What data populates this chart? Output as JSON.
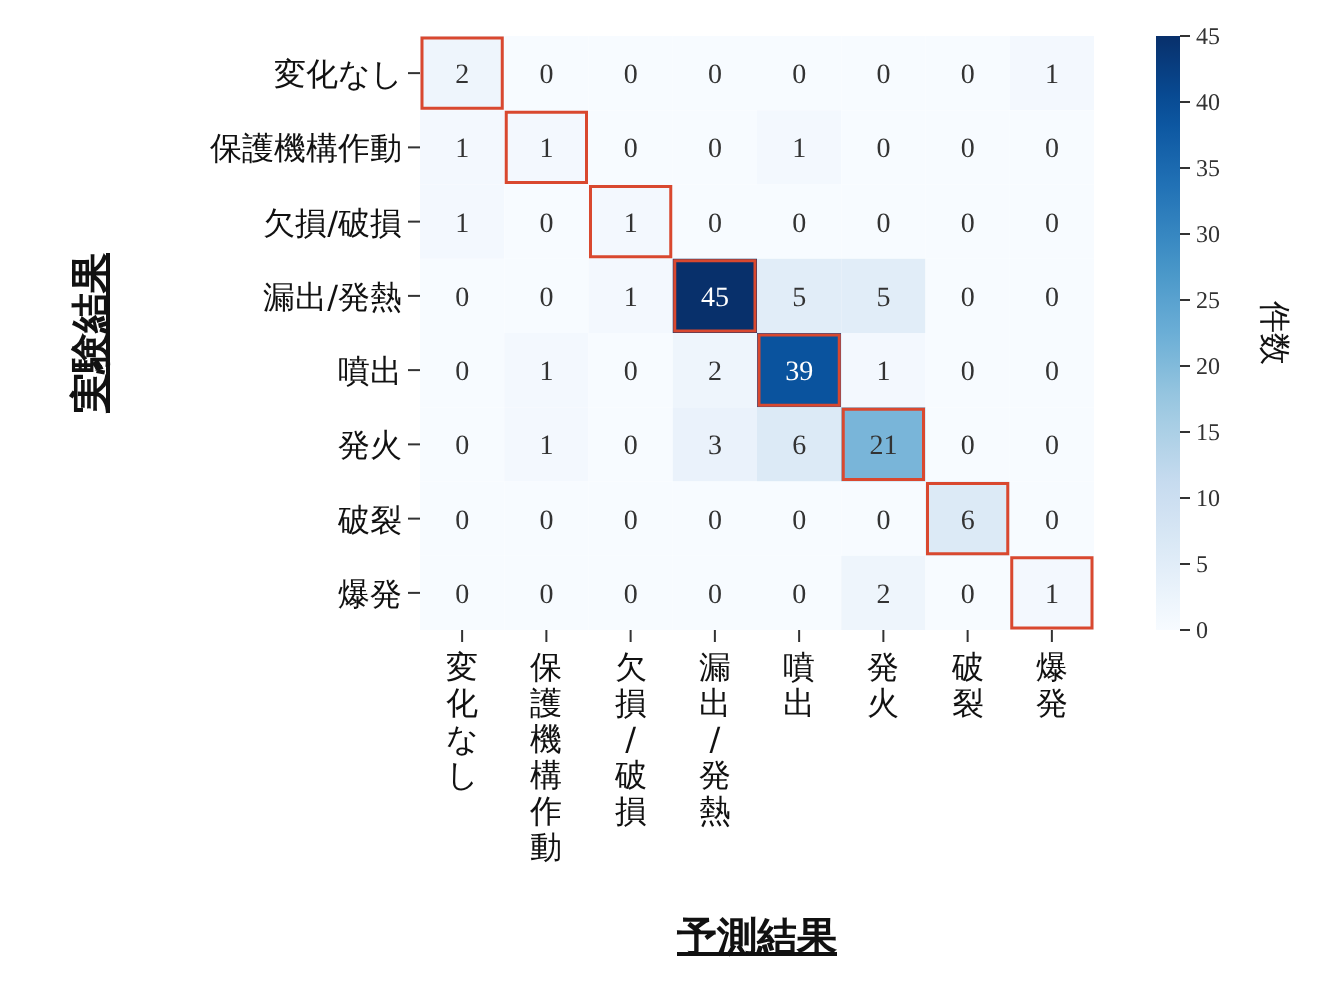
{
  "chart_data": {
    "type": "heatmap",
    "xlabel": "予測結果",
    "ylabel": "実験結果",
    "clabel": "件数",
    "categories": [
      "変化なし",
      "保護機構作動",
      "欠損/破損",
      "漏出/発熱",
      "噴出",
      "発火",
      "破裂",
      "爆発"
    ],
    "y_categories": [
      "変化なし",
      "保護機構作動",
      "欠損/破損",
      "漏出/発熱",
      "噴出",
      "発火",
      "破裂",
      "爆発"
    ],
    "cells": [
      [
        2,
        0,
        0,
        0,
        0,
        0,
        0,
        1
      ],
      [
        1,
        1,
        0,
        0,
        1,
        0,
        0,
        0
      ],
      [
        1,
        0,
        1,
        0,
        0,
        0,
        0,
        0
      ],
      [
        0,
        0,
        1,
        45,
        5,
        5,
        0,
        0
      ],
      [
        0,
        1,
        0,
        2,
        39,
        1,
        0,
        0
      ],
      [
        0,
        1,
        0,
        3,
        6,
        21,
        0,
        0
      ],
      [
        0,
        0,
        0,
        0,
        0,
        0,
        6,
        0
      ],
      [
        0,
        0,
        0,
        0,
        0,
        2,
        0,
        1
      ]
    ],
    "clim": [
      0,
      45
    ],
    "cticks": [
      0,
      5,
      10,
      15,
      20,
      25,
      30,
      35,
      40,
      45
    ],
    "data_labels": true
  }
}
